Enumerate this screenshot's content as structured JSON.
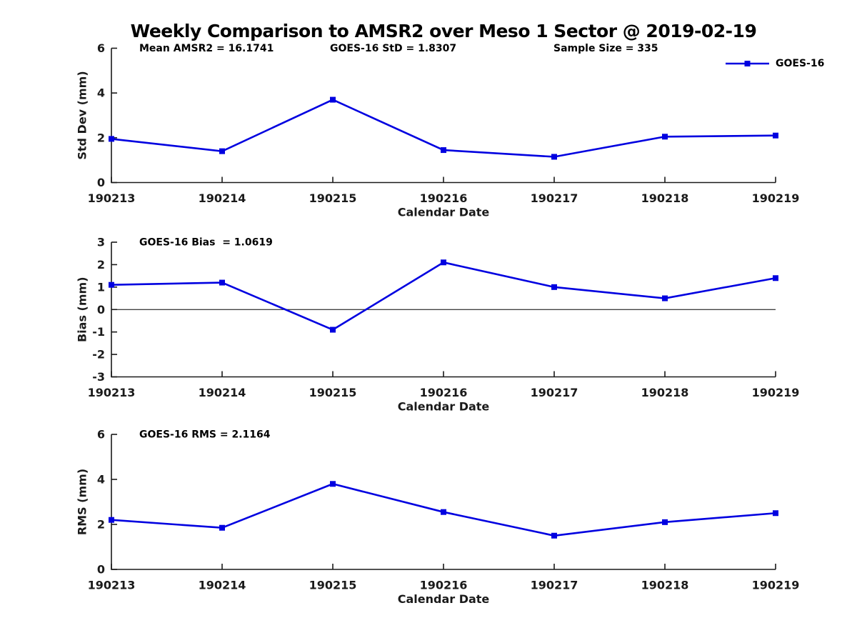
{
  "figure": {
    "title": "Weekly Comparison to AMSR2 over Meso 1 Sector @ 2019-02-19",
    "background": "#ffffff",
    "line_color": "#0000e0",
    "axis_color": "#1a1a1a",
    "zero_line_color": "#000000",
    "legend": {
      "label": "GOES-16",
      "position": "top-right"
    }
  },
  "chart_data": [
    {
      "type": "line",
      "name": "stddev",
      "annotations": [
        "Mean AMSR2 = 16.1741",
        "GOES-16 StD = 1.8307",
        "Sample Size = 335"
      ],
      "xlabel": "Calendar Date",
      "ylabel": "Std Dev (mm)",
      "categories": [
        "190213",
        "190214",
        "190215",
        "190216",
        "190217",
        "190218",
        "190219"
      ],
      "series": [
        {
          "name": "GOES-16",
          "values": [
            1.95,
            1.4,
            3.7,
            1.45,
            1.15,
            2.05,
            2.1
          ]
        }
      ],
      "ylim": [
        0,
        6
      ],
      "yticks": [
        0,
        2,
        4,
        6
      ],
      "grid": false,
      "zero_line": false,
      "legend": true
    },
    {
      "type": "line",
      "name": "bias",
      "annotations": [
        "GOES-16 Bias  = 1.0619"
      ],
      "xlabel": "Calendar Date",
      "ylabel": "Bias (mm)",
      "categories": [
        "190213",
        "190214",
        "190215",
        "190216",
        "190217",
        "190218",
        "190219"
      ],
      "series": [
        {
          "name": "GOES-16",
          "values": [
            1.1,
            1.2,
            -0.9,
            2.1,
            1.0,
            0.5,
            1.4
          ]
        }
      ],
      "ylim": [
        -3,
        3
      ],
      "yticks": [
        -3,
        -2,
        -1,
        0,
        1,
        2,
        3
      ],
      "grid": false,
      "zero_line": true,
      "legend": false
    },
    {
      "type": "line",
      "name": "rms",
      "annotations": [
        "GOES-16 RMS = 2.1164"
      ],
      "xlabel": "Calendar Date",
      "ylabel": "RMS (mm)",
      "categories": [
        "190213",
        "190214",
        "190215",
        "190216",
        "190217",
        "190218",
        "190219"
      ],
      "series": [
        {
          "name": "GOES-16",
          "values": [
            2.2,
            1.85,
            3.8,
            2.55,
            1.5,
            2.1,
            2.5
          ]
        }
      ],
      "ylim": [
        0,
        6
      ],
      "yticks": [
        0,
        2,
        4,
        6
      ],
      "grid": false,
      "zero_line": false,
      "legend": false
    }
  ]
}
